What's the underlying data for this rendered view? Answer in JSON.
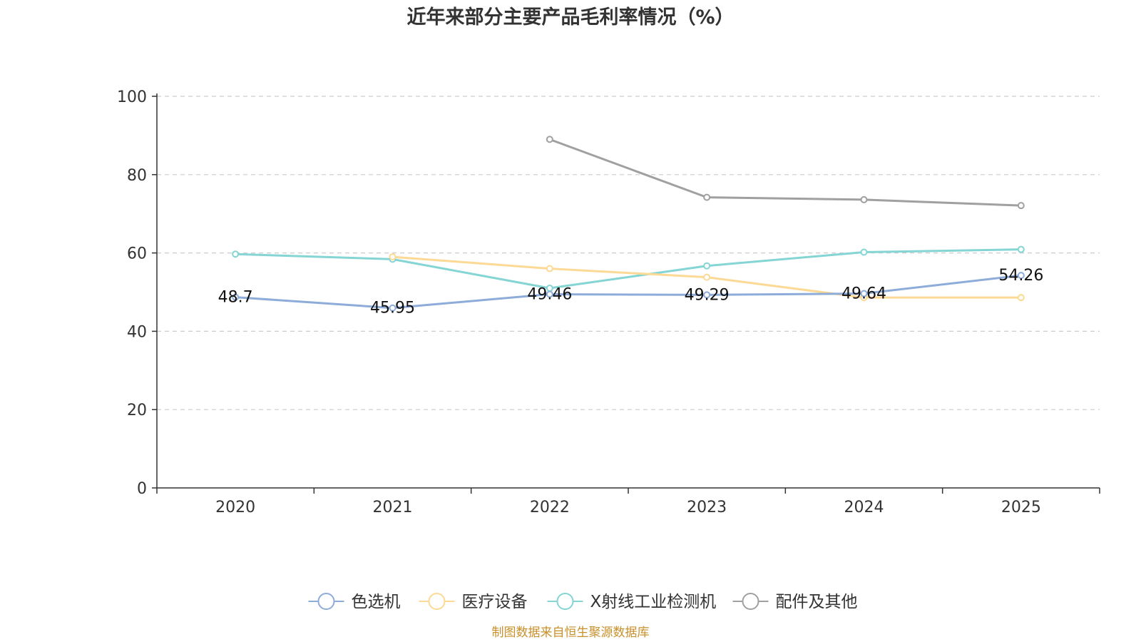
{
  "chart_data": {
    "type": "line",
    "title": "近年来部分主要产品毛利率情况（%）",
    "categories": [
      "2020",
      "2021",
      "2022",
      "2023",
      "2024",
      "2025"
    ],
    "y_ticks": [
      "0",
      "20",
      "40",
      "60",
      "80",
      "100"
    ],
    "ylim": [
      0,
      100
    ],
    "grid": true,
    "legend_position": "bottom-center",
    "series": [
      {
        "name": "色选机",
        "color": "#8eacd9",
        "values": [
          48.7,
          45.95,
          49.46,
          49.29,
          49.64,
          54.26
        ],
        "labels": [
          "48.7",
          "45.95",
          "49.46",
          "49.29",
          "49.64",
          "54.26"
        ]
      },
      {
        "name": "医疗设备",
        "color": "#fcd995",
        "values": [
          null,
          59.0,
          56.0,
          53.8,
          48.6,
          48.6
        ]
      },
      {
        "name": "X射线工业检测机",
        "color": "#84d5d3",
        "values": [
          59.7,
          58.4,
          51.0,
          56.7,
          60.2,
          60.9
        ]
      },
      {
        "name": "配件及其他",
        "color": "#a0a0a0",
        "values": [
          null,
          null,
          89.0,
          74.2,
          73.6,
          72.1
        ]
      }
    ],
    "source": "制图数据来自恒生聚源数据库"
  }
}
